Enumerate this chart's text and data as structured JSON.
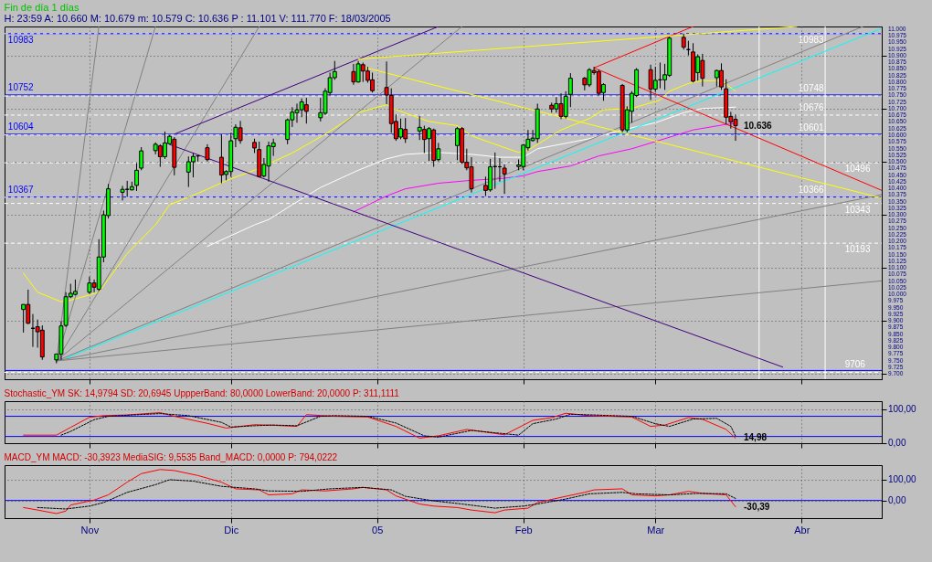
{
  "chart_data": [
    {
      "type": "candlestick",
      "title": "Fin de día 1 días",
      "subtitle": "H: 23:59  A: 10.660  M: 10.679  m: 10.579  C: 10.636  P : 11.101  V: 111.770  F: 18/03/2005",
      "x": [
        "2004-10-18",
        "2004-10-19",
        "2004-10-20",
        "2004-10-21",
        "2004-10-22",
        "2004-10-25",
        "2004-10-26",
        "2004-10-27",
        "2004-10-28",
        "2004-10-29",
        "2004-11-01",
        "2004-11-02",
        "2004-11-03",
        "2004-11-04",
        "2004-11-05",
        "2004-11-08",
        "2004-11-09",
        "2004-11-10",
        "2004-11-11",
        "2004-11-12",
        "2004-11-15",
        "2004-11-16",
        "2004-11-17",
        "2004-11-18",
        "2004-11-19",
        "2004-11-22",
        "2004-11-23",
        "2004-11-24",
        "2004-11-26",
        "2004-11-29",
        "2004-11-30",
        "2004-12-01",
        "2004-12-02",
        "2004-12-03",
        "2004-12-06",
        "2004-12-07",
        "2004-12-08",
        "2004-12-09",
        "2004-12-10",
        "2004-12-13",
        "2004-12-14",
        "2004-12-15",
        "2004-12-16",
        "2004-12-17",
        "2004-12-20",
        "2004-12-21",
        "2004-12-22",
        "2004-12-23",
        "2004-12-27",
        "2004-12-28",
        "2004-12-29",
        "2004-12-30",
        "2004-12-31",
        "2005-01-03",
        "2005-01-04",
        "2005-01-05",
        "2005-01-06",
        "2005-01-07",
        "2005-01-10",
        "2005-01-11",
        "2005-01-12",
        "2005-01-13",
        "2005-01-14",
        "2005-01-18",
        "2005-01-19",
        "2005-01-20",
        "2005-01-21",
        "2005-01-24",
        "2005-01-25",
        "2005-01-26",
        "2005-01-27",
        "2005-01-28",
        "2005-01-31",
        "2005-02-01",
        "2005-02-02",
        "2005-02-03",
        "2005-02-04",
        "2005-02-07",
        "2005-02-08",
        "2005-02-09",
        "2005-02-10",
        "2005-02-11",
        "2005-02-14",
        "2005-02-15",
        "2005-02-16",
        "2005-02-17",
        "2005-02-18",
        "2005-02-22",
        "2005-02-23",
        "2005-02-24",
        "2005-02-25",
        "2005-02-28",
        "2005-03-01",
        "2005-03-02",
        "2005-03-03",
        "2005-03-04",
        "2005-03-07",
        "2005-03-08",
        "2005-03-09",
        "2005-03-10",
        "2005-03-11",
        "2005-03-14",
        "2005-03-15",
        "2005-03-16",
        "2005-03-17",
        "2005-03-18"
      ],
      "ohlc": [
        [
          9943,
          9962,
          9856,
          9962
        ],
        [
          9962,
          10018,
          9888,
          9891
        ],
        [
          9872,
          9926,
          9802,
          9872
        ],
        [
          9878,
          9905,
          9799,
          9859
        ],
        [
          9865,
          9883,
          9753,
          9764
        ],
        [
          9753,
          9775,
          9740,
          9775
        ],
        [
          9775,
          9899,
          9753,
          9881
        ],
        [
          9883,
          10008,
          9877,
          9991
        ],
        [
          9991,
          10040,
          9986,
          10004
        ],
        [
          10000,
          10056,
          9996,
          10011
        ],
        [
          10008,
          10067,
          10002,
          10043
        ],
        [
          10043,
          10056,
          10008,
          10027
        ],
        [
          10019,
          10208,
          10013,
          10141
        ],
        [
          10141,
          10316,
          10121,
          10300
        ],
        [
          10297,
          10416,
          10286,
          10398
        ],
        [
          10385,
          10409,
          10354,
          10396
        ],
        [
          10396,
          10428,
          10368,
          10396
        ],
        [
          10394,
          10425,
          10392,
          10406
        ],
        [
          10411,
          10495,
          10390,
          10468
        ],
        [
          10476,
          10555,
          10468,
          10541
        ],
        [
          10542,
          10573,
          10528,
          10566
        ],
        [
          10560,
          10566,
          10481,
          10519
        ],
        [
          10519,
          10614,
          10511,
          10571
        ],
        [
          10568,
          10600,
          10566,
          10596
        ],
        [
          10585,
          10593,
          10449,
          10479
        ],
        [
          10461,
          10520,
          10405,
          10500
        ],
        [
          10500,
          10533,
          10441,
          10520
        ],
        [
          10522,
          10524,
          10501,
          10522
        ],
        [
          10553,
          10566,
          10501,
          10508
        ],
        [
          10517,
          10603,
          10419,
          10450
        ],
        [
          10452,
          10468,
          10430,
          10463
        ],
        [
          10463,
          10609,
          10443,
          10579
        ],
        [
          10587,
          10641,
          10555,
          10630
        ],
        [
          10628,
          10654,
          10568,
          10580
        ],
        [
          10573,
          10587,
          10533,
          10552
        ],
        [
          10546,
          10576,
          10441,
          10444
        ],
        [
          10446,
          10514,
          10441,
          10490
        ],
        [
          10484,
          10576,
          10425,
          10560
        ],
        [
          10557,
          10587,
          10522,
          10571
        ],
        [
          10584,
          10663,
          10566,
          10658
        ],
        [
          10658,
          10706,
          10631,
          10687
        ],
        [
          10685,
          10719,
          10647,
          10696
        ],
        [
          10696,
          10739,
          10668,
          10726
        ],
        [
          10715,
          10741,
          10644,
          10690
        ],
        [
          10666,
          10741,
          10652,
          10685
        ],
        [
          10683,
          10777,
          10676,
          10766
        ],
        [
          10761,
          10836,
          10750,
          10817
        ],
        [
          10817,
          10880,
          10809,
          10840
        ],
        [
          10840,
          10869,
          10790,
          10801
        ],
        [
          10801,
          10880,
          10798,
          10869
        ],
        [
          10866,
          10874,
          10801,
          10842
        ],
        [
          10842,
          10858,
          10798,
          10807
        ],
        [
          10809,
          10836,
          10761,
          10768
        ],
        [
          10780,
          10878,
          10717,
          10752
        ],
        [
          10750,
          10777,
          10609,
          10644
        ],
        [
          10652,
          10679,
          10579,
          10587
        ],
        [
          10593,
          10663,
          10585,
          10625
        ],
        [
          10622,
          10665,
          10571,
          10587
        ],
        [
          10616,
          10672,
          10582,
          10630
        ],
        [
          10622,
          10636,
          10533,
          10584
        ],
        [
          10587,
          10631,
          10503,
          10625
        ],
        [
          10620,
          10625,
          10481,
          10505
        ],
        [
          10508,
          10571,
          10501,
          10549
        ],
        [
          10561,
          10631,
          10506,
          10625
        ],
        [
          10625,
          10631,
          10492,
          10498
        ],
        [
          10498,
          10549,
          10468,
          10477
        ],
        [
          10481,
          10517,
          10384,
          10398
        ],
        [
          10411,
          10444,
          10371,
          10392
        ],
        [
          10394,
          10511,
          10387,
          10481
        ],
        [
          10482,
          10535,
          10398,
          10482
        ],
        [
          10481,
          10514,
          10425,
          10481
        ],
        [
          10476,
          10490,
          10379,
          10454
        ],
        [
          10482,
          10509,
          10468,
          10488
        ],
        [
          10482,
          10566,
          10468,
          10563
        ],
        [
          10553,
          10620,
          10542,
          10585
        ],
        [
          10580,
          10620,
          10576,
          10589
        ],
        [
          10587,
          10719,
          10571,
          10699
        ],
        [
          10713,
          10723,
          10685,
          10699
        ],
        [
          10699,
          10744,
          10685,
          10719
        ],
        [
          10719,
          10758,
          10661,
          10671
        ],
        [
          10671,
          10766,
          10663,
          10747
        ],
        [
          10754,
          10834,
          10706,
          10815
        ],
        [
          10815,
          10820,
          10769,
          10790
        ],
        [
          10790,
          10853,
          10782,
          10847
        ],
        [
          10844,
          10858,
          10828,
          10836
        ],
        [
          10840,
          10847,
          10750,
          10758
        ],
        [
          10761,
          10796,
          10730,
          10791
        ],
        [
          10788,
          10793,
          10611,
          10620
        ],
        [
          10620,
          10709,
          10611,
          10696
        ],
        [
          10690,
          10766,
          10647,
          10758
        ],
        [
          10750,
          10853,
          10744,
          10847
        ],
        [
          10847,
          10866,
          10733,
          10774
        ],
        [
          10774,
          10858,
          10763,
          10807
        ],
        [
          10809,
          10874,
          10777,
          10809
        ],
        [
          10809,
          10869,
          10771,
          10828
        ],
        [
          10826,
          10972,
          10820,
          10966
        ],
        [
          10969,
          10983,
          10923,
          10932
        ],
        [
          10923,
          10956,
          10901,
          10923
        ],
        [
          10914,
          10947,
          10799,
          10804
        ],
        [
          10836,
          10905,
          10806,
          10896
        ],
        [
          10882,
          10907,
          10784,
          10815
        ],
        [
          10817,
          10847,
          10784,
          10844
        ],
        [
          10844,
          10871,
          10771,
          10782
        ],
        [
          10775,
          10811,
          10641,
          10668
        ],
        [
          10671,
          10688,
          10625,
          10650
        ],
        [
          10660,
          10679,
          10579,
          10636
        ]
      ],
      "colors": [
        "#00ff00",
        "#ff0000",
        "#000000",
        "#ff0000",
        "#ff0000",
        "#00ff00",
        "#00ff00",
        "#00ff00",
        "#00ff00",
        "#00ff00",
        "#00ff00",
        "#ff0000",
        "#00ff00",
        "#00ff00",
        "#00ff00",
        "#00ff00",
        "#000000",
        "#00ff00",
        "#00ff00",
        "#00ff00",
        "#00ff00",
        "#ff0000",
        "#00ff00",
        "#00ff00",
        "#ff0000",
        "#00ff00",
        "#00ff00",
        "#000000",
        "#ff0000",
        "#ff0000",
        "#00ff00",
        "#00ff00",
        "#00ff00",
        "#ff0000",
        "#ff0000",
        "#ff0000",
        "#00ff00",
        "#00ff00",
        "#00ff00",
        "#00ff00",
        "#00ff00",
        "#00ff00",
        "#00ff00",
        "#ff0000",
        "#00ff00",
        "#00ff00",
        "#00ff00",
        "#00ff00",
        "#ff0000",
        "#00ff00",
        "#ff0000",
        "#ff0000",
        "#ff0000",
        "#ff0000",
        "#ff0000",
        "#ff0000",
        "#00ff00",
        "#ff0000",
        "#00ff00",
        "#ff0000",
        "#00ff00",
        "#ff0000",
        "#00ff00",
        "#00ff00",
        "#ff0000",
        "#ff0000",
        "#ff0000",
        "#ff0000",
        "#00ff00",
        "#000000",
        "#000000",
        "#ff0000",
        "#00ff00",
        "#00ff00",
        "#00ff00",
        "#00ff00",
        "#00ff00",
        "#ff0000",
        "#00ff00",
        "#ff0000",
        "#00ff00",
        "#00ff00",
        "#ff0000",
        "#00ff00",
        "#ff0000",
        "#ff0000",
        "#00ff00",
        "#ff0000",
        "#00ff00",
        "#00ff00",
        "#00ff00",
        "#ff0000",
        "#00ff00",
        "#000000",
        "#00ff00",
        "#00ff00",
        "#ff0000",
        "#000000",
        "#ff0000",
        "#00ff00",
        "#ff0000",
        "#00ff00",
        "#ff0000",
        "#ff0000",
        "#ff0000",
        "#ff0000"
      ],
      "series": [
        {
          "type": "line",
          "color": "#ffff00",
          "x": [
            "2004-10-18",
            "2004-10-21",
            "2004-10-26",
            "2004-10-28",
            "2004-11-03",
            "2004-11-09",
            "2004-11-15",
            "2004-11-18",
            "2004-11-24",
            "2004-12-01",
            "2004-12-06",
            "2004-12-14",
            "2004-12-21",
            "2004-12-28",
            "2005-01-03",
            "2005-01-05",
            "2005-01-12",
            "2005-01-18",
            "2005-01-21",
            "2005-01-26",
            "2005-01-31",
            "2005-02-02",
            "2005-02-09",
            "2005-02-15",
            "2005-02-18",
            "2005-02-24",
            "2005-03-02",
            "2005-03-04",
            "2005-03-08",
            "2005-03-11",
            "2005-03-15",
            "2005-03-18"
          ],
          "values": [
            10080,
            10008,
            9972,
            9978,
            10008,
            10154,
            10262,
            10338,
            10381,
            10436,
            10468,
            10533,
            10604,
            10685,
            10715,
            10696,
            10652,
            10636,
            10598,
            10566,
            10535,
            10544,
            10620,
            10663,
            10696,
            10701,
            10733,
            10766,
            10795,
            10806,
            10806,
            10766
          ]
        },
        {
          "type": "line",
          "color": "#ffffff",
          "x": [
            "2004-11-26",
            "2004-12-06",
            "2004-12-09",
            "2004-12-14",
            "2004-12-20",
            "2004-12-28",
            "2005-01-03",
            "2005-01-07",
            "2005-01-14",
            "2005-01-21",
            "2005-01-27",
            "2005-02-01",
            "2005-02-04",
            "2005-02-15",
            "2005-02-22",
            "2005-03-01",
            "2005-03-07",
            "2005-03-11",
            "2005-03-18"
          ],
          "values": [
            10181,
            10262,
            10282,
            10338,
            10403,
            10468,
            10511,
            10528,
            10535,
            10528,
            10517,
            10517,
            10549,
            10587,
            10620,
            10647,
            10685,
            10701,
            10706
          ]
        },
        {
          "type": "line",
          "color": "#ff00ff",
          "x": [
            "2004-12-27",
            "2005-01-03",
            "2005-01-07",
            "2005-01-14",
            "2005-01-21",
            "2005-01-27",
            "2005-02-01",
            "2005-02-04",
            "2005-02-11",
            "2005-02-17",
            "2005-02-24",
            "2005-03-03",
            "2005-03-09",
            "2005-03-16",
            "2005-03-18"
          ],
          "values": [
            10311,
            10371,
            10398,
            10419,
            10430,
            10436,
            10447,
            10463,
            10484,
            10522,
            10549,
            10587,
            10620,
            10641,
            10644
          ]
        },
        {
          "type": "line",
          "color": "#00ffff",
          "x": [
            "2004-10-27",
            "2005-04-18"
          ],
          "values": [
            9759,
            11003
          ]
        },
        {
          "type": "line",
          "color": "#808080",
          "x": [
            "2004-10-25",
            "2004-11-03"
          ],
          "values": [
            9749,
            11010
          ]
        },
        {
          "type": "line",
          "color": "#808080",
          "x": [
            "2004-10-25",
            "2004-11-15"
          ],
          "values": [
            9749,
            11010
          ]
        },
        {
          "type": "line",
          "color": "#808080",
          "x": [
            "2004-10-25",
            "2004-12-07"
          ],
          "values": [
            9749,
            11010
          ]
        },
        {
          "type": "line",
          "color": "#808080",
          "x": [
            "2004-10-25",
            "2005-01-19"
          ],
          "values": [
            9749,
            11010
          ]
        },
        {
          "type": "line",
          "color": "#808080",
          "x": [
            "2004-10-25",
            "2005-04-14"
          ],
          "values": [
            9749,
            11010
          ]
        },
        {
          "type": "line",
          "color": "#808080",
          "x": [
            "2004-10-25",
            "2005-04-18"
          ],
          "values": [
            9749,
            10376
          ]
        },
        {
          "type": "line",
          "color": "#808080",
          "x": [
            "2004-10-25",
            "2005-04-18"
          ],
          "values": [
            9749,
            10051
          ]
        },
        {
          "type": "line",
          "color": "#400080",
          "x": [
            "2004-11-19",
            "2005-01-14"
          ],
          "values": [
            10604,
            11010
          ]
        },
        {
          "type": "line",
          "color": "#400080",
          "x": [
            "2004-11-18",
            "2005-03-28"
          ],
          "values": [
            10565,
            9726
          ]
        },
        {
          "type": "line",
          "color": "#ff0000",
          "x": [
            "2005-02-16",
            "2005-03-09"
          ],
          "values": [
            10854,
            11010
          ]
        },
        {
          "type": "line",
          "color": "#ff0000",
          "x": [
            "2005-02-16",
            "2005-04-18"
          ],
          "values": [
            10854,
            10392
          ]
        },
        {
          "type": "line",
          "color": "#ffff00",
          "x": [
            "2004-12-28",
            "2005-03-31"
          ],
          "values": [
            10887,
            11010
          ]
        },
        {
          "type": "line",
          "color": "#ffff00",
          "x": [
            "2004-12-29",
            "2005-04-18"
          ],
          "values": [
            10857,
            10363
          ]
        }
      ],
      "ref_lines": [
        {
          "axis": "y",
          "value": 10983,
          "label": "10983",
          "color": "#0000ff"
        },
        {
          "axis": "y",
          "value": 10752,
          "label": "10752",
          "color": "#0000ff"
        },
        {
          "axis": "y",
          "value": 10604,
          "label": "10604",
          "color": "#0000ff"
        },
        {
          "axis": "y",
          "value": 10367,
          "label": "10367",
          "color": "#0000ff"
        },
        {
          "axis": "y",
          "value": 9713,
          "label": null,
          "color": "#0000ff"
        },
        {
          "axis": "y",
          "value": 10983,
          "label": "10983",
          "color": "#ffffff",
          "line_style": "dashed"
        },
        {
          "axis": "y",
          "value": 10496,
          "label": "10496",
          "color": "#ffffff",
          "line_style": "dashed"
        },
        {
          "axis": "y",
          "value": 10748,
          "label": "10748",
          "color": "#ffffff",
          "line_style": "dashed"
        },
        {
          "axis": "y",
          "value": 10343,
          "label": "10343",
          "color": "#ffffff",
          "line_style": "dashed"
        },
        {
          "axis": "y",
          "value": 10676,
          "label": "10676",
          "color": "#ffffff",
          "line_style": "dashed"
        },
        {
          "axis": "y",
          "value": 10193,
          "label": "10193",
          "color": "#ffffff",
          "line_style": "dashed"
        },
        {
          "axis": "y",
          "value": 10601,
          "label": "10601",
          "color": "#ffffff",
          "line_style": "dashed"
        },
        {
          "axis": "y",
          "value": 9706,
          "label": "9706",
          "color": "#ffffff",
          "line_style": "dashed"
        },
        {
          "axis": "y",
          "value": 10366,
          "label": "10366",
          "color": "#ffffff",
          "line_style": "dashed"
        },
        {
          "axis": "x",
          "value": "2005-03-23",
          "label": null,
          "color": "#ffffff"
        },
        {
          "axis": "x",
          "value": "2005-04-06",
          "label": null,
          "color": "#ffffff"
        }
      ],
      "annotations": [
        {
          "text": "10.636",
          "x": "2005-03-18",
          "y": 10636
        }
      ],
      "xlim": [
        "2004-10-14",
        "2005-04-18"
      ],
      "xticks": [
        {
          "value": "2004-11-01",
          "label": null
        },
        {
          "value": "2004-12-01",
          "label": null
        },
        {
          "value": "2005-01-01",
          "label": null
        },
        {
          "value": "2005-02-01",
          "label": null
        },
        {
          "value": "2005-03-01",
          "label": null
        },
        {
          "value": "2005-04-01",
          "label": null
        }
      ],
      "ylim": [
        9680,
        11010
      ],
      "yticks": [
        {
          "value": 9700,
          "label": "9.700"
        },
        {
          "value": 9725,
          "label": "9.725"
        },
        {
          "value": 9750,
          "label": "9.750"
        },
        {
          "value": 9775,
          "label": "9.775"
        },
        {
          "value": 9800,
          "label": "9.800"
        },
        {
          "value": 9825,
          "label": "9.825"
        },
        {
          "value": 9850,
          "label": "9.850"
        },
        {
          "value": 9875,
          "label": "9.875"
        },
        {
          "value": 9900,
          "label": "9.900"
        },
        {
          "value": 9925,
          "label": "9.925"
        },
        {
          "value": 9950,
          "label": "9.950"
        },
        {
          "value": 9975,
          "label": "9.975"
        },
        {
          "value": 10000,
          "label": "10.000"
        },
        {
          "value": 10025,
          "label": "10.025"
        },
        {
          "value": 10050,
          "label": "10.050"
        },
        {
          "value": 10075,
          "label": "10.075"
        },
        {
          "value": 10100,
          "label": "10.100"
        },
        {
          "value": 10125,
          "label": "10.125"
        },
        {
          "value": 10150,
          "label": "10.150"
        },
        {
          "value": 10175,
          "label": "10.175"
        },
        {
          "value": 10200,
          "label": "10.200"
        },
        {
          "value": 10225,
          "label": "10.225"
        },
        {
          "value": 10250,
          "label": "10.250"
        },
        {
          "value": 10275,
          "label": "10.275"
        },
        {
          "value": 10300,
          "label": "10.300"
        },
        {
          "value": 10325,
          "label": "10.325"
        },
        {
          "value": 10350,
          "label": "10.350"
        },
        {
          "value": 10375,
          "label": "10.375"
        },
        {
          "value": 10400,
          "label": "10.400"
        },
        {
          "value": 10425,
          "label": "10.425"
        },
        {
          "value": 10450,
          "label": "10.450"
        },
        {
          "value": 10475,
          "label": "10.475"
        },
        {
          "value": 10500,
          "label": "10.500"
        },
        {
          "value": 10525,
          "label": "10.525"
        },
        {
          "value": 10550,
          "label": "10.550"
        },
        {
          "value": 10575,
          "label": "10.575"
        },
        {
          "value": 10600,
          "label": "10.600"
        },
        {
          "value": 10625,
          "label": "10.625"
        },
        {
          "value": 10650,
          "label": "10.650"
        },
        {
          "value": 10675,
          "label": "10.675"
        },
        {
          "value": 10700,
          "label": "10.700"
        },
        {
          "value": 10725,
          "label": "10.725"
        },
        {
          "value": 10750,
          "label": "10.750"
        },
        {
          "value": 10775,
          "label": "10.775"
        },
        {
          "value": 10800,
          "label": "10.800"
        },
        {
          "value": 10825,
          "label": "10.825"
        },
        {
          "value": 10850,
          "label": "10.850"
        },
        {
          "value": 10875,
          "label": "10.875"
        },
        {
          "value": 10900,
          "label": "10.900"
        },
        {
          "value": 10925,
          "label": "10.925"
        },
        {
          "value": 10950,
          "label": "10.950"
        },
        {
          "value": 10975,
          "label": "10.975"
        },
        {
          "value": 11000,
          "label": "11.000"
        }
      ],
      "grid": true,
      "tick_labels": "y"
    },
    {
      "type": "line",
      "title": "Stochastic_YM  SK: 14,9794  SD: 20,6945  UppperBand: 80,0000  LowerBand: 20,0000  P: 311,1111",
      "series": [
        {
          "color": "#ff0000",
          "x": [
            "2004-10-18",
            "2004-10-25",
            "2004-10-28",
            "2004-11-01",
            "2004-11-04",
            "2004-11-09",
            "2004-11-16",
            "2004-11-19",
            "2004-11-26",
            "2004-11-30",
            "2004-12-06",
            "2004-12-09",
            "2004-12-15",
            "2004-12-17",
            "2004-12-23",
            "2004-12-30",
            "2005-01-05",
            "2005-01-10",
            "2005-01-14",
            "2005-01-20",
            "2005-01-26",
            "2005-01-28",
            "2005-02-03",
            "2005-02-07",
            "2005-02-10",
            "2005-02-15",
            "2005-02-24",
            "2005-02-28",
            "2005-03-03",
            "2005-03-08",
            "2005-03-11",
            "2005-03-16",
            "2005-03-18"
          ],
          "values": [
            24,
            24,
            47,
            77,
            82,
            84,
            91,
            80,
            59,
            45,
            55,
            54,
            50,
            85,
            80,
            78,
            50,
            15,
            22,
            41,
            29,
            25,
            68,
            76,
            89,
            82,
            78,
            50,
            54,
            76,
            71,
            41,
            14.98
          ]
        },
        {
          "color": "#000000",
          "line_style": "dotted",
          "x": [
            "2004-10-26",
            "2004-10-28",
            "2004-11-02",
            "2004-11-05",
            "2004-11-10",
            "2004-11-16",
            "2004-11-22",
            "2004-11-29",
            "2004-12-01",
            "2004-12-06",
            "2004-12-10",
            "2004-12-15",
            "2004-12-20",
            "2004-12-23",
            "2004-12-30",
            "2005-01-05",
            "2005-01-11",
            "2005-01-14",
            "2005-01-21",
            "2005-01-26",
            "2005-01-31",
            "2005-02-03",
            "2005-02-08",
            "2005-02-11",
            "2005-02-16",
            "2005-02-24",
            "2005-03-01",
            "2005-03-04",
            "2005-03-09",
            "2005-03-14",
            "2005-03-17",
            "2005-03-18"
          ],
          "values": [
            24,
            35,
            70,
            80,
            84,
            88,
            82,
            62,
            48,
            52,
            54,
            52,
            80,
            82,
            80,
            60,
            22,
            18,
            38,
            31,
            24,
            58,
            72,
            86,
            84,
            80,
            58,
            50,
            72,
            74,
            50,
            20.69
          ]
        }
      ],
      "ref_lines": [
        {
          "axis": "y",
          "value": 80,
          "label": null,
          "color": "#0000ff"
        },
        {
          "axis": "y",
          "value": 20,
          "label": null,
          "color": "#0000ff"
        }
      ],
      "annotations": [
        {
          "text": "14,98",
          "x": "2005-03-18",
          "y": 14.98
        }
      ],
      "xlim": [
        "2004-10-14",
        "2005-04-18"
      ],
      "xticks": [
        {
          "value": "2004-11-01",
          "label": null
        },
        {
          "value": "2004-12-01",
          "label": null
        },
        {
          "value": "2005-01-01",
          "label": null
        },
        {
          "value": "2005-02-01",
          "label": null
        },
        {
          "value": "2005-03-01",
          "label": null
        },
        {
          "value": "2005-04-01",
          "label": null
        }
      ],
      "ylim": [
        0,
        125
      ],
      "yticks": [
        {
          "value": 0,
          "label": "0,00"
        },
        {
          "value": 100,
          "label": "100,00"
        }
      ],
      "grid": true,
      "tick_labels": "y"
    },
    {
      "type": "line",
      "title": "MACD_YM  MACD: -30,3923  MediaSIG: 9,5535  Band_MACD: 0,0000  P: 794,0222",
      "series": [
        {
          "color": "#ff0000",
          "x": [
            "2004-10-18",
            "2004-10-21",
            "2004-10-25",
            "2004-10-27",
            "2004-10-28",
            "2004-11-02",
            "2004-11-05",
            "2004-11-09",
            "2004-11-12",
            "2004-11-16",
            "2004-11-19",
            "2004-11-24",
            "2004-11-29",
            "2004-12-02",
            "2004-12-07",
            "2004-12-09",
            "2004-12-14",
            "2004-12-16",
            "2004-12-21",
            "2004-12-27",
            "2004-12-29",
            "2005-01-03",
            "2005-01-05",
            "2005-01-10",
            "2005-01-13",
            "2005-01-18",
            "2005-01-21",
            "2005-01-26",
            "2005-01-28",
            "2005-02-02",
            "2005-02-04",
            "2005-02-09",
            "2005-02-14",
            "2005-02-16",
            "2005-02-22",
            "2005-02-24",
            "2005-03-01",
            "2005-03-04",
            "2005-03-08",
            "2005-03-11",
            "2005-03-16",
            "2005-03-18"
          ],
          "values": [
            -34,
            -46,
            -63,
            -51,
            -22,
            2,
            27,
            88,
            129,
            149,
            144,
            120,
            88,
            56,
            51,
            27,
            32,
            51,
            46,
            56,
            63,
            51,
            22,
            -17,
            -27,
            -34,
            -46,
            -59,
            -46,
            -37,
            -10,
            15,
            39,
            51,
            56,
            27,
            22,
            27,
            44,
            34,
            27,
            -30.39
          ]
        },
        {
          "color": "#000000",
          "line_style": "dotted",
          "x": [
            "2004-10-21",
            "2004-10-27",
            "2004-11-01",
            "2004-11-04",
            "2004-11-09",
            "2004-11-15",
            "2004-11-18",
            "2004-11-23",
            "2004-11-29",
            "2004-12-06",
            "2004-12-09",
            "2004-12-16",
            "2004-12-22",
            "2004-12-29",
            "2005-01-04",
            "2005-01-07",
            "2005-01-13",
            "2005-01-19",
            "2005-01-26",
            "2005-02-01",
            "2005-02-04",
            "2005-02-10",
            "2005-02-15",
            "2005-02-22",
            "2005-02-25",
            "2005-03-04",
            "2005-03-10",
            "2005-03-16",
            "2005-03-18"
          ],
          "values": [
            -34,
            -41,
            -27,
            -10,
            39,
            76,
            100,
            93,
            68,
            56,
            46,
            44,
            56,
            63,
            51,
            20,
            -2,
            -17,
            -37,
            -27,
            -17,
            7,
            32,
            39,
            32,
            27,
            34,
            32,
            9.55
          ]
        }
      ],
      "ref_lines": [
        {
          "axis": "y",
          "value": 0,
          "label": null,
          "color": "#0000ff"
        }
      ],
      "annotations": [
        {
          "text": "-30,39",
          "x": "2005-03-18",
          "y": -30.39
        }
      ],
      "xlim": [
        "2004-10-14",
        "2005-04-18"
      ],
      "xticks": [
        {
          "value": "2004-11-01",
          "label": "Nov"
        },
        {
          "value": "2004-12-01",
          "label": "Dic"
        },
        {
          "value": "2005-01-01",
          "label": "05"
        },
        {
          "value": "2005-02-01",
          "label": "Feb"
        },
        {
          "value": "2005-03-01",
          "label": "Mar"
        },
        {
          "value": "2005-04-01",
          "label": "Abr"
        }
      ],
      "ylim": [
        -85,
        170
      ],
      "yticks": [
        {
          "value": 0,
          "label": "0,00"
        },
        {
          "value": 100,
          "label": "100,00"
        }
      ],
      "grid": true
    }
  ]
}
